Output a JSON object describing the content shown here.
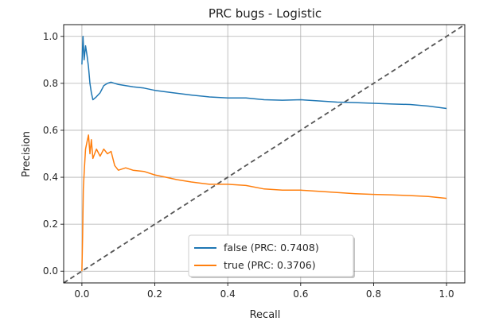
{
  "chart_data": {
    "type": "line",
    "title": "PRC bugs - Logistic",
    "xlabel": "Recall",
    "ylabel": "Precision",
    "xlim": [
      -0.05,
      1.05
    ],
    "ylim": [
      -0.05,
      1.05
    ],
    "xticks": [
      0.0,
      0.2,
      0.4,
      0.6,
      0.8,
      1.0
    ],
    "yticks": [
      0.0,
      0.2,
      0.4,
      0.6,
      0.8,
      1.0
    ],
    "xtick_labels": [
      "0.0",
      "0.2",
      "0.4",
      "0.6",
      "0.8",
      "1.0"
    ],
    "ytick_labels": [
      "0.0",
      "0.2",
      "0.4",
      "0.6",
      "0.8",
      "1.0"
    ],
    "grid": true,
    "legend": "lower-center",
    "series": [
      {
        "name": "false (PRC: 0.7408)",
        "color": "#1f77b4",
        "points": [
          [
            0.0,
            0.88
          ],
          [
            0.003,
            1.0
          ],
          [
            0.006,
            0.9
          ],
          [
            0.01,
            0.96
          ],
          [
            0.014,
            0.92
          ],
          [
            0.018,
            0.87
          ],
          [
            0.022,
            0.8
          ],
          [
            0.026,
            0.76
          ],
          [
            0.03,
            0.73
          ],
          [
            0.038,
            0.74
          ],
          [
            0.05,
            0.76
          ],
          [
            0.06,
            0.79
          ],
          [
            0.07,
            0.8
          ],
          [
            0.08,
            0.805
          ],
          [
            0.09,
            0.8
          ],
          [
            0.1,
            0.795
          ],
          [
            0.12,
            0.79
          ],
          [
            0.14,
            0.785
          ],
          [
            0.17,
            0.78
          ],
          [
            0.2,
            0.77
          ],
          [
            0.25,
            0.76
          ],
          [
            0.3,
            0.75
          ],
          [
            0.35,
            0.742
          ],
          [
            0.4,
            0.738
          ],
          [
            0.45,
            0.738
          ],
          [
            0.5,
            0.73
          ],
          [
            0.55,
            0.728
          ],
          [
            0.6,
            0.73
          ],
          [
            0.65,
            0.725
          ],
          [
            0.7,
            0.72
          ],
          [
            0.75,
            0.718
          ],
          [
            0.8,
            0.715
          ],
          [
            0.85,
            0.712
          ],
          [
            0.9,
            0.71
          ],
          [
            0.95,
            0.703
          ],
          [
            1.0,
            0.693
          ]
        ]
      },
      {
        "name": "true (PRC: 0.3706)",
        "color": "#ff7f0e",
        "points": [
          [
            0.0,
            0.0
          ],
          [
            0.002,
            0.15
          ],
          [
            0.004,
            0.35
          ],
          [
            0.007,
            0.44
          ],
          [
            0.01,
            0.52
          ],
          [
            0.014,
            0.55
          ],
          [
            0.018,
            0.58
          ],
          [
            0.022,
            0.5
          ],
          [
            0.026,
            0.56
          ],
          [
            0.03,
            0.48
          ],
          [
            0.035,
            0.5
          ],
          [
            0.04,
            0.52
          ],
          [
            0.05,
            0.49
          ],
          [
            0.06,
            0.52
          ],
          [
            0.07,
            0.5
          ],
          [
            0.08,
            0.51
          ],
          [
            0.09,
            0.45
          ],
          [
            0.1,
            0.43
          ],
          [
            0.12,
            0.44
          ],
          [
            0.14,
            0.43
          ],
          [
            0.17,
            0.425
          ],
          [
            0.2,
            0.41
          ],
          [
            0.23,
            0.4
          ],
          [
            0.26,
            0.39
          ],
          [
            0.3,
            0.38
          ],
          [
            0.35,
            0.37
          ],
          [
            0.4,
            0.37
          ],
          [
            0.45,
            0.365
          ],
          [
            0.5,
            0.35
          ],
          [
            0.55,
            0.345
          ],
          [
            0.6,
            0.345
          ],
          [
            0.65,
            0.34
          ],
          [
            0.7,
            0.335
          ],
          [
            0.75,
            0.33
          ],
          [
            0.8,
            0.327
          ],
          [
            0.85,
            0.325
          ],
          [
            0.9,
            0.322
          ],
          [
            0.95,
            0.318
          ],
          [
            1.0,
            0.31
          ]
        ]
      }
    ],
    "reference_line": {
      "points": [
        [
          -0.05,
          -0.05
        ],
        [
          1.05,
          1.05
        ]
      ],
      "style": "dashed",
      "color": "#555555"
    }
  }
}
